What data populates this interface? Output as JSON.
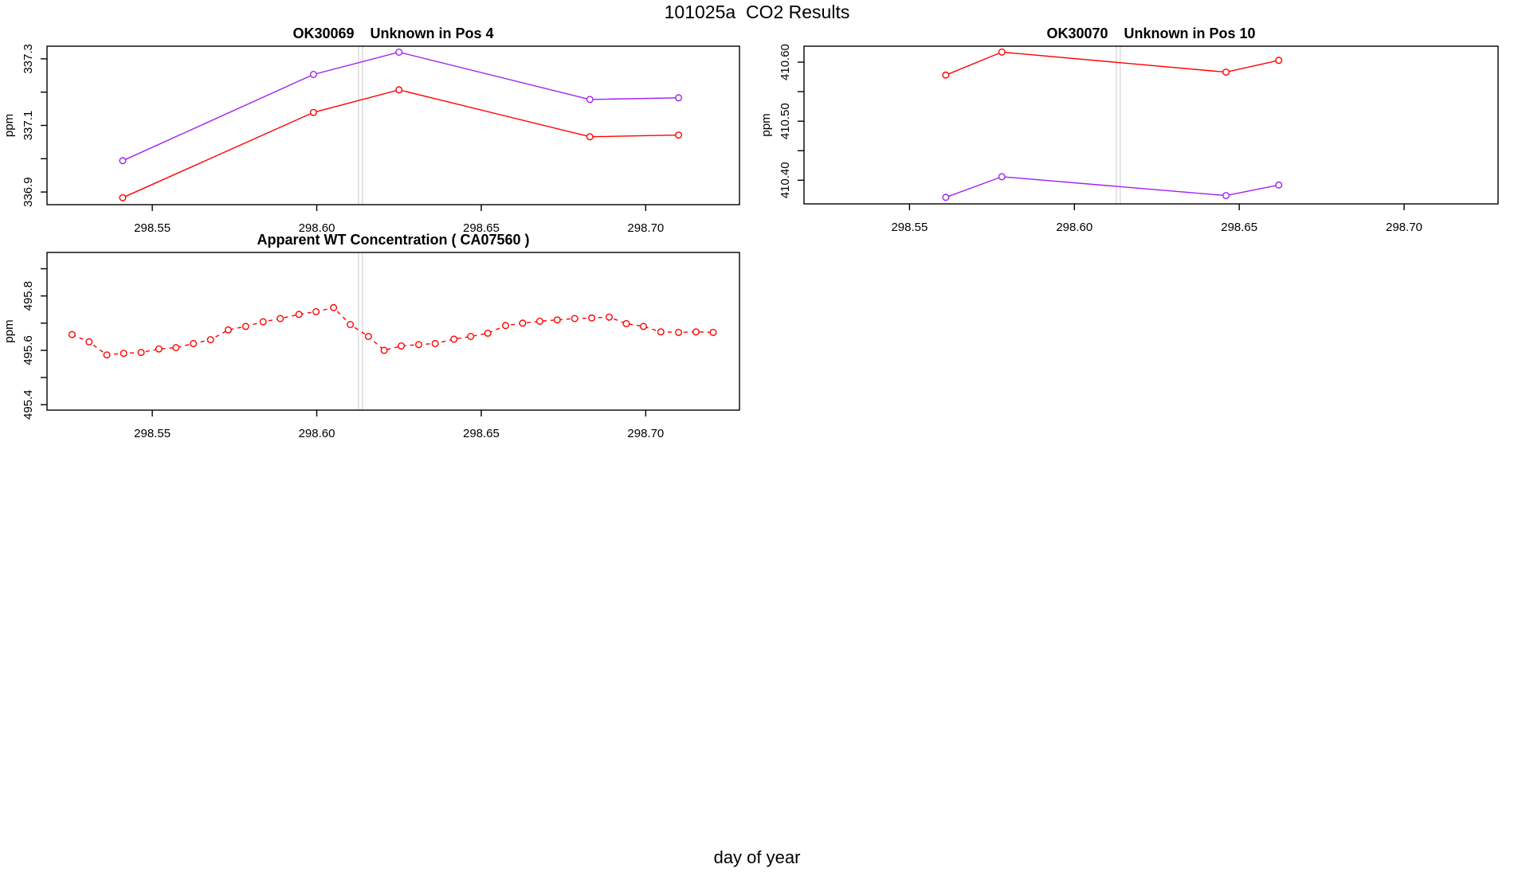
{
  "figure": {
    "title": "101025a  CO2 Results",
    "x_axis_title": "day of year"
  },
  "colors": {
    "red": "#ff0000",
    "purple": "#a020f0",
    "reference_line": "#d9d9d9",
    "axis": "#000000",
    "background": "#ffffff"
  },
  "chart_data": [
    {
      "id": "ok30069",
      "type": "line",
      "title": "OK30069    Unknown in Pos 4",
      "ylabel": "ppm",
      "x_range": [
        298.518,
        298.7285
      ],
      "y_range": [
        336.862,
        337.338
      ],
      "x_ticks": [
        {
          "value": 298.55,
          "label": "298.55"
        },
        {
          "value": 298.6,
          "label": "298.60"
        },
        {
          "value": 298.65,
          "label": "298.65"
        },
        {
          "value": 298.7,
          "label": "298.70"
        }
      ],
      "y_ticks": [
        {
          "value": 336.9,
          "label": "336.9"
        },
        {
          "value": 337.0,
          "label": ""
        },
        {
          "value": 337.1,
          "label": "337.1"
        },
        {
          "value": 337.2,
          "label": ""
        },
        {
          "value": 337.3,
          "label": "337.3"
        }
      ],
      "reference_lines_x": [
        298.6127,
        298.6139
      ],
      "series": [
        {
          "name": "purple",
          "color": "#a020f0",
          "line_style": "solid",
          "marker": "open-circle",
          "x": [
            298.541,
            298.599,
            298.625,
            298.683,
            298.71
          ],
          "y": [
            336.994,
            337.253,
            337.32,
            337.178,
            337.183
          ]
        },
        {
          "name": "red",
          "color": "#ff0000",
          "line_style": "solid",
          "marker": "open-circle",
          "x": [
            298.541,
            298.599,
            298.625,
            298.683,
            298.71
          ],
          "y": [
            336.883,
            337.139,
            337.207,
            337.066,
            337.071
          ]
        }
      ]
    },
    {
      "id": "ok30070",
      "type": "line",
      "title": "OK30070    Unknown in Pos 10",
      "ylabel": "ppm",
      "x_range": [
        298.518,
        298.7285
      ],
      "y_range": [
        410.36,
        410.627
      ],
      "x_ticks": [
        {
          "value": 298.55,
          "label": "298.55"
        },
        {
          "value": 298.6,
          "label": "298.60"
        },
        {
          "value": 298.65,
          "label": "298.65"
        },
        {
          "value": 298.7,
          "label": "298.70"
        }
      ],
      "y_ticks": [
        {
          "value": 410.4,
          "label": "410.40"
        },
        {
          "value": 410.45,
          "label": ""
        },
        {
          "value": 410.5,
          "label": "410.50"
        },
        {
          "value": 410.55,
          "label": ""
        },
        {
          "value": 410.6,
          "label": "410.60"
        }
      ],
      "reference_lines_x": [
        298.6127,
        298.6139
      ],
      "series": [
        {
          "name": "red",
          "color": "#ff0000",
          "line_style": "solid",
          "marker": "open-circle",
          "x": [
            298.561,
            298.578,
            298.646,
            298.662
          ],
          "y": [
            410.578,
            410.617,
            410.583,
            410.603
          ]
        },
        {
          "name": "purple",
          "color": "#a020f0",
          "line_style": "solid",
          "marker": "open-circle",
          "x": [
            298.561,
            298.578,
            298.646,
            298.662
          ],
          "y": [
            410.371,
            410.406,
            410.374,
            410.392
          ]
        }
      ]
    },
    {
      "id": "apparent-wt",
      "type": "line",
      "title": "Apparent WT Concentration ( CA07560 )",
      "ylabel": "ppm",
      "x_range": [
        298.518,
        298.7285
      ],
      "y_range": [
        495.38,
        495.96
      ],
      "x_ticks": [
        {
          "value": 298.55,
          "label": "298.55"
        },
        {
          "value": 298.6,
          "label": "298.60"
        },
        {
          "value": 298.65,
          "label": "298.65"
        },
        {
          "value": 298.7,
          "label": "298.70"
        }
      ],
      "y_ticks": [
        {
          "value": 495.4,
          "label": "495.4"
        },
        {
          "value": 495.5,
          "label": ""
        },
        {
          "value": 495.6,
          "label": "495.6"
        },
        {
          "value": 495.7,
          "label": ""
        },
        {
          "value": 495.8,
          "label": "495.8"
        },
        {
          "value": 495.9,
          "label": ""
        }
      ],
      "reference_lines_x": [
        298.6127,
        298.6139
      ],
      "series": [
        {
          "name": "red-dashed",
          "color": "#ff0000",
          "line_style": "dashed",
          "marker": "open-circle",
          "x": [
            298.5256,
            298.5308,
            298.5362,
            298.5413,
            298.5466,
            298.552,
            298.5572,
            298.5625,
            298.5677,
            298.5731,
            298.5784,
            298.5837,
            298.5889,
            298.5946,
            298.5998,
            298.6051,
            298.6102,
            298.6157,
            298.6205,
            298.6257,
            298.631,
            298.636,
            298.6417,
            298.6468,
            298.652,
            298.6574,
            298.6626,
            298.6678,
            298.6731,
            298.6784,
            298.6836,
            298.6889,
            298.6941,
            298.6993,
            298.7046,
            298.71,
            298.7153,
            298.7205
          ],
          "y": [
            495.658,
            495.631,
            495.583,
            495.589,
            495.592,
            495.605,
            495.61,
            495.625,
            495.639,
            495.675,
            495.688,
            495.705,
            495.717,
            495.732,
            495.742,
            495.757,
            495.695,
            495.651,
            495.6,
            495.616,
            495.621,
            495.625,
            495.641,
            495.651,
            495.663,
            495.691,
            495.7,
            495.707,
            495.712,
            495.717,
            495.719,
            495.722,
            495.698,
            495.688,
            495.668,
            495.666,
            495.668,
            495.666
          ]
        }
      ]
    }
  ]
}
